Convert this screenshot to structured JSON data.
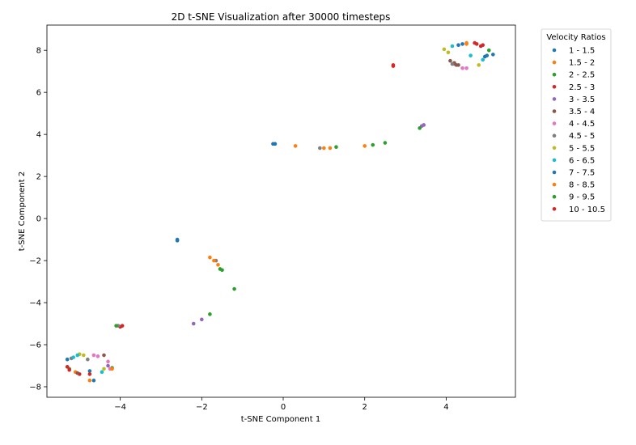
{
  "chart_data": {
    "type": "scatter",
    "title": "2D t-SNE Visualization after 30000 timesteps",
    "xlabel": "t-SNE Component 1",
    "ylabel": "t-SNE Component 2",
    "xlim": [
      -5.8,
      5.7
    ],
    "ylim": [
      -8.5,
      9.2
    ],
    "xticks": [
      -4,
      -2,
      0,
      2,
      4
    ],
    "yticks": [
      -8,
      -6,
      -4,
      -2,
      0,
      2,
      4,
      6,
      8
    ],
    "xtick_labels": [
      "−4",
      "−2",
      "0",
      "2",
      "4"
    ],
    "ytick_labels": [
      "−8",
      "−6",
      "−4",
      "−2",
      "0",
      "2",
      "4",
      "6",
      "8"
    ],
    "grid": false,
    "legend": {
      "title": "Velocity Ratios",
      "placement": "outside-right"
    },
    "series": [
      {
        "name": "1 - 1.5",
        "color": "#1f77b4",
        "points": [
          [
            -5.3,
            -6.7
          ],
          [
            -4.75,
            -7.25
          ],
          [
            4.4,
            8.3
          ],
          [
            4.95,
            7.7
          ],
          [
            -0.2,
            3.55
          ],
          [
            -2.6,
            -1.05
          ]
        ]
      },
      {
        "name": "1.5 - 2",
        "color": "#ff7f0e",
        "points": [
          [
            -5.1,
            -7.3
          ],
          [
            -4.75,
            -7.7
          ],
          [
            4.5,
            8.3
          ],
          [
            0.3,
            3.45
          ],
          [
            1.0,
            3.35
          ],
          [
            -1.8,
            -1.85
          ]
        ]
      },
      {
        "name": "2 - 2.5",
        "color": "#2ca02c",
        "points": [
          [
            -5.25,
            -7.15
          ],
          [
            -4.2,
            -7.1
          ],
          [
            -1.5,
            -2.45
          ],
          [
            -1.2,
            -3.35
          ],
          [
            -1.8,
            -4.55
          ],
          [
            2.5,
            3.6
          ]
        ]
      },
      {
        "name": "2.5 - 3",
        "color": "#d62728",
        "points": [
          [
            -5.3,
            -7.05
          ],
          [
            -5.0,
            -7.4
          ],
          [
            4.75,
            8.3
          ],
          [
            4.85,
            8.2
          ],
          [
            -4.0,
            -5.15
          ],
          [
            2.7,
            7.25
          ]
        ]
      },
      {
        "name": "3 - 3.5",
        "color": "#9467bd",
        "points": [
          [
            -4.3,
            -7.0
          ],
          [
            -2.2,
            -5.0
          ],
          [
            -2.0,
            -4.8
          ],
          [
            3.4,
            4.4
          ],
          [
            3.45,
            4.45
          ],
          [
            4.2,
            7.35
          ]
        ]
      },
      {
        "name": "3.5 - 4",
        "color": "#8c564b",
        "points": [
          [
            -4.4,
            -6.5
          ],
          [
            -5.05,
            -7.35
          ],
          [
            4.1,
            7.5
          ],
          [
            4.25,
            7.3
          ],
          [
            4.2,
            7.4
          ],
          [
            4.3,
            7.3
          ]
        ]
      },
      {
        "name": "4 - 4.5",
        "color": "#e377c2",
        "points": [
          [
            -4.65,
            -6.5
          ],
          [
            -4.55,
            -6.55
          ],
          [
            -4.3,
            -6.8
          ],
          [
            -4.25,
            -7.15
          ],
          [
            4.4,
            7.15
          ],
          [
            4.5,
            7.15
          ]
        ]
      },
      {
        "name": "4.5 - 5",
        "color": "#7f7f7f",
        "points": [
          [
            -4.8,
            -6.7
          ],
          [
            -5.2,
            -6.65
          ],
          [
            4.15,
            7.35
          ],
          [
            0.9,
            3.35
          ],
          [
            -1.65,
            -2.0
          ],
          [
            -4.05,
            -5.1
          ]
        ]
      },
      {
        "name": "5 - 5.5",
        "color": "#bcbd22",
        "points": [
          [
            -5.0,
            -6.45
          ],
          [
            -4.9,
            -6.5
          ],
          [
            -4.4,
            -7.15
          ],
          [
            3.95,
            8.05
          ],
          [
            4.05,
            7.9
          ],
          [
            4.8,
            7.3
          ]
        ]
      },
      {
        "name": "6 - 6.5",
        "color": "#17becf",
        "points": [
          [
            -5.15,
            -6.6
          ],
          [
            -5.05,
            -6.5
          ],
          [
            -4.45,
            -7.3
          ],
          [
            4.15,
            8.2
          ],
          [
            4.6,
            7.75
          ],
          [
            4.9,
            7.55
          ]
        ]
      },
      {
        "name": "7 - 7.5",
        "color": "#1f77b4",
        "points": [
          [
            -4.65,
            -7.7
          ],
          [
            4.3,
            8.25
          ],
          [
            5.0,
            7.75
          ],
          [
            5.15,
            7.8
          ],
          [
            -2.6,
            -1.0
          ],
          [
            -0.25,
            3.55
          ]
        ]
      },
      {
        "name": "8 - 8.5",
        "color": "#ff7f0e",
        "points": [
          [
            -4.2,
            -7.15
          ],
          [
            -1.6,
            -2.2
          ],
          [
            -1.7,
            -2.0
          ],
          [
            1.15,
            3.35
          ],
          [
            2.0,
            3.45
          ],
          [
            4.5,
            8.35
          ]
        ]
      },
      {
        "name": "9 - 9.5",
        "color": "#2ca02c",
        "points": [
          [
            -4.1,
            -5.1
          ],
          [
            -1.55,
            -2.4
          ],
          [
            1.3,
            3.4
          ],
          [
            2.2,
            3.5
          ],
          [
            3.35,
            4.3
          ],
          [
            5.05,
            8.0
          ]
        ]
      },
      {
        "name": "10 - 10.5",
        "color": "#d62728",
        "points": [
          [
            -4.75,
            -7.4
          ],
          [
            -3.95,
            -5.1
          ],
          [
            2.7,
            7.3
          ],
          [
            4.7,
            8.35
          ],
          [
            4.9,
            8.25
          ],
          [
            -5.25,
            -7.2
          ]
        ]
      }
    ]
  }
}
